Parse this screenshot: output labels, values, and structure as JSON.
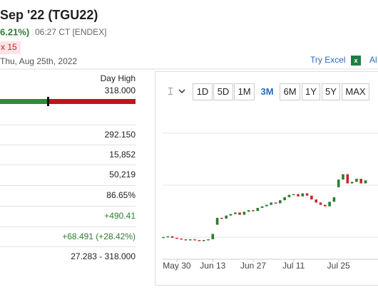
{
  "header": {
    "title": "Sep '22 (TGU22)",
    "change": "6.21%)",
    "time": "06:27 CT [ENDEX]",
    "badge": "x 15",
    "date": "Thu, Aug 25th, 2022",
    "excel_link": "Try Excel",
    "alert_link": "Al"
  },
  "stats": {
    "day_high_label": "Day High",
    "day_high": "318.000",
    "rows": [
      "292.150",
      "15,852",
      "50,219",
      "86.65%",
      "+490.41",
      "+68.491 (+28.42%)",
      "27.283 - 318.000"
    ]
  },
  "toolbar": [
    "1D",
    "5D",
    "1M",
    "3M",
    "6M",
    "1Y",
    "5Y",
    "MAX"
  ],
  "chart_data": {
    "type": "candlestick",
    "categories": [
      null,
      null,
      null,
      "May 30",
      null,
      null,
      null,
      null,
      null,
      null,
      null,
      "Jun 13",
      null,
      null,
      null,
      null,
      null,
      null,
      null,
      null,
      "Jun 27",
      null,
      null,
      null,
      null,
      null,
      null,
      null,
      null,
      "Jul 11",
      null,
      null,
      null,
      null,
      null,
      null,
      null,
      null,
      null,
      "Jul 25",
      null,
      null,
      null,
      null,
      null,
      null
    ],
    "open": [
      179,
      180,
      181,
      179,
      178,
      177,
      176,
      177,
      176,
      175,
      176,
      177,
      196,
      205,
      204,
      208,
      210,
      212,
      209,
      213,
      215,
      214,
      218,
      220,
      222,
      225,
      224,
      228,
      232,
      235,
      236,
      233,
      237,
      234,
      229,
      225,
      222,
      220,
      226,
      245,
      255,
      262,
      250,
      252,
      256,
      250
    ],
    "close": [
      180,
      181,
      179,
      178,
      177,
      176,
      177,
      176,
      175,
      176,
      177,
      184,
      205,
      204,
      208,
      210,
      212,
      209,
      213,
      215,
      214,
      218,
      220,
      222,
      225,
      224,
      228,
      232,
      235,
      236,
      233,
      237,
      234,
      229,
      225,
      222,
      220,
      226,
      232,
      255,
      262,
      250,
      252,
      256,
      250,
      254
    ],
    "ylim": [
      150,
      350
    ],
    "up_color": "#2e7d32",
    "down_color": "#c62828"
  }
}
